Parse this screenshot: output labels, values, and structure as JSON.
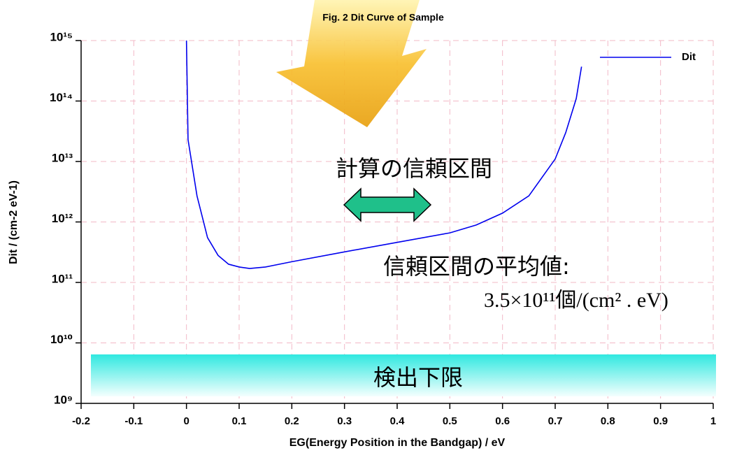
{
  "chart_data": {
    "type": "line",
    "title": "Fig. 2  Dit Curve of Sample",
    "x_label": "EG(Energy Position in the Bandgap) / eV",
    "y_label": "Dit / (cm-2 eV-1)",
    "y_log": true,
    "grid": true,
    "legend": "top-right",
    "xlim": [
      -0.2,
      1.0
    ],
    "xticks": [
      -0.2,
      -0.1,
      0,
      0.1,
      0.2,
      0.3,
      0.4,
      0.5,
      0.6,
      0.7,
      0.8,
      0.9,
      1
    ],
    "ylim": [
      1000000000,
      1000000000000000
    ],
    "yticks": [
      {
        "value": 1000000000,
        "label": "10⁹"
      },
      {
        "value": 10000000000,
        "label": "10¹⁰"
      },
      {
        "value": 100000000000,
        "label": "10¹¹"
      },
      {
        "value": 1000000000000,
        "label": "10¹²"
      },
      {
        "value": 10000000000000,
        "label": "10¹³"
      },
      {
        "value": 100000000000000,
        "label": "10¹⁴"
      },
      {
        "value": 1000000000000000,
        "label": "10¹⁵"
      }
    ],
    "x": [
      0.0,
      0.003,
      0.02,
      0.04,
      0.06,
      0.08,
      0.1,
      0.12,
      0.15,
      0.2,
      0.3,
      0.4,
      0.5,
      0.55,
      0.6,
      0.65,
      0.7,
      0.72,
      0.74,
      0.75
    ],
    "series": [
      {
        "name": "Dit",
        "color": "#0000ee",
        "values": [
          1000000000000000,
          23000000000000,
          2700000000000,
          550000000000,
          280000000000,
          200000000000,
          180000000000,
          170000000000,
          180000000000,
          220000000000,
          320000000000,
          460000000000,
          660000000000,
          890000000000,
          1400000000000,
          2700000000000,
          11000000000000,
          30000000000000,
          110000000000000,
          370000000000000
        ]
      }
    ],
    "annotations": [
      "計算の信頼区間",
      "信頼区間の平均値:",
      "3.5×10¹¹個/(cm² . eV)",
      "検出下限"
    ]
  }
}
